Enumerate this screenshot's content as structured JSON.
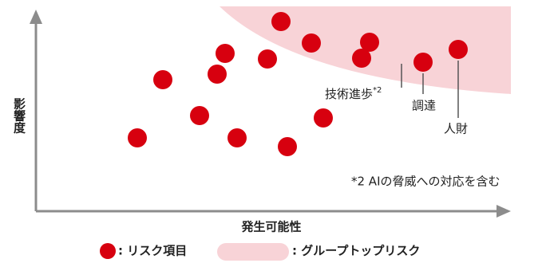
{
  "axes": {
    "y_label": "影響度",
    "x_label": "発生可能性"
  },
  "labels": [
    {
      "text": "技術進歩",
      "note": "*2"
    },
    {
      "text": "調達"
    },
    {
      "text": "人財"
    }
  ],
  "footnote": "*2 AIの脅威への対応を含む",
  "legend": [
    {
      "label": ": リスク項目"
    },
    {
      "label": ": グループトップリスク"
    }
  ]
}
